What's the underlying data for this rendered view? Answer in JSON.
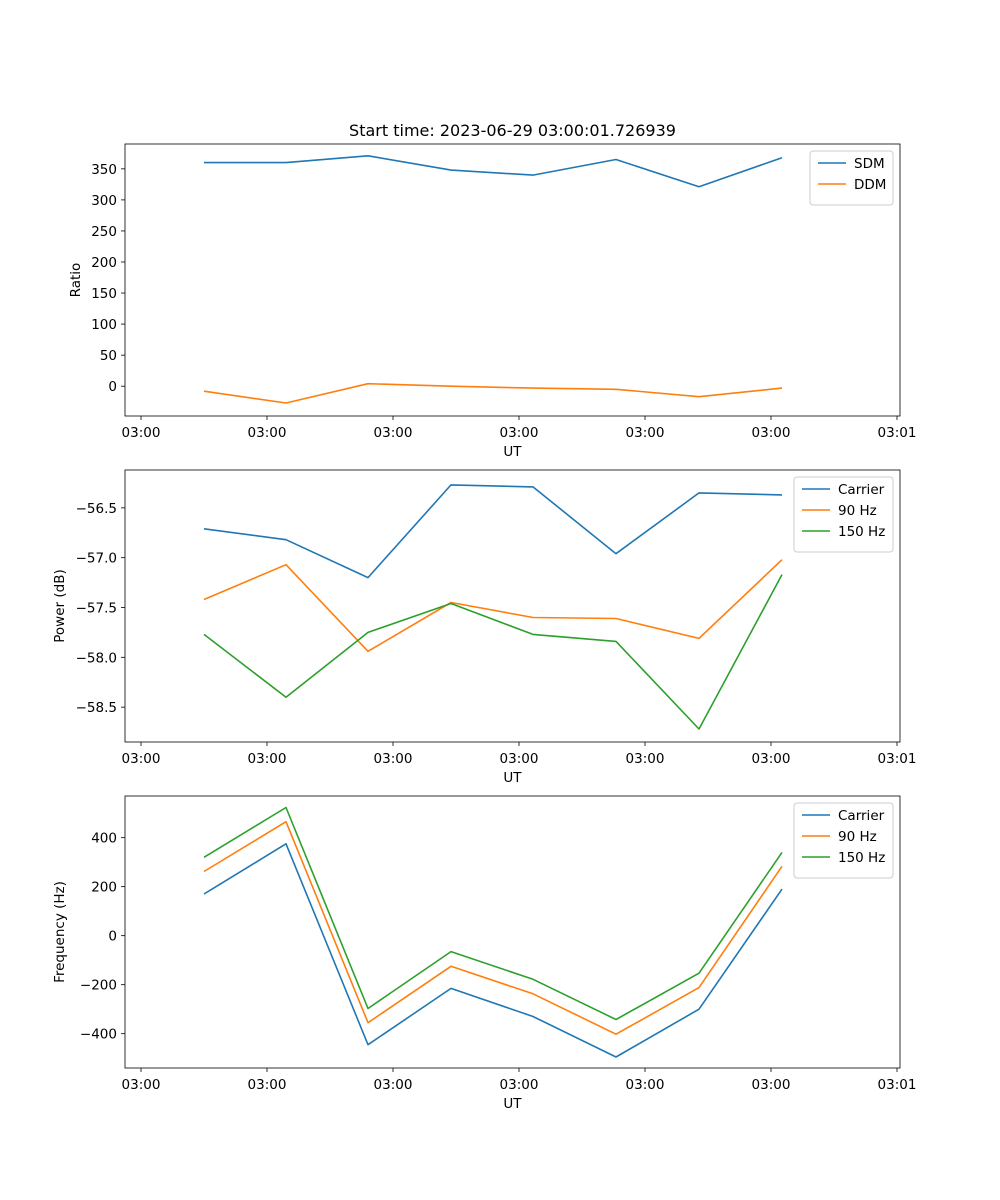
{
  "figure": {
    "title": "Start time: 2023-06-29 03:00:01.726939"
  },
  "colors": {
    "blue": "#1f77b4",
    "orange": "#ff7f0e",
    "green": "#2ca02c"
  },
  "chart_data": [
    {
      "type": "line",
      "title": "Start time: 2023-06-29 03:00:01.726939",
      "xlabel": "UT",
      "ylabel": "Ratio",
      "x_tick_labels": [
        "03:00",
        "03:00",
        "03:00",
        "03:00",
        "03:00",
        "03:00",
        "03:00",
        "03:01"
      ],
      "y_ticks": [
        0,
        50,
        100,
        150,
        200,
        250,
        300,
        350
      ],
      "ylim": [
        -48,
        390
      ],
      "legend": "top-right",
      "series": [
        {
          "name": "SDM",
          "color": "#1f77b4",
          "values": [
            360,
            360,
            371,
            348,
            340,
            365,
            321,
            368
          ]
        },
        {
          "name": "DDM",
          "color": "#ff7f0e",
          "values": [
            -8,
            -27,
            4,
            0,
            -3,
            -5,
            -17,
            -3
          ]
        }
      ]
    },
    {
      "type": "line",
      "title": "",
      "xlabel": "UT",
      "ylabel": "Power (dB)",
      "x_tick_labels": [
        "03:00",
        "03:00",
        "03:00",
        "03:00",
        "03:00",
        "03:00",
        "03:00",
        "03:01"
      ],
      "y_ticks": [
        -58.5,
        -58.0,
        -57.5,
        -57.0,
        -56.5
      ],
      "y_tick_labels": [
        "−58.5",
        "−58.0",
        "−57.5",
        "−57.0",
        "−56.5"
      ],
      "ylim": [
        -58.85,
        -56.12
      ],
      "legend": "top-right",
      "series": [
        {
          "name": "Carrier",
          "color": "#1f77b4",
          "values": [
            -56.71,
            -56.82,
            -57.2,
            -56.27,
            -56.29,
            -56.96,
            -56.35,
            -56.37
          ]
        },
        {
          "name": "90 Hz",
          "color": "#ff7f0e",
          "values": [
            -57.42,
            -57.07,
            -57.94,
            -57.45,
            -57.6,
            -57.61,
            -57.81,
            -57.02
          ]
        },
        {
          "name": "150 Hz",
          "color": "#2ca02c",
          "values": [
            -57.77,
            -58.4,
            -57.75,
            -57.46,
            -57.77,
            -57.84,
            -58.72,
            -57.17
          ]
        }
      ]
    },
    {
      "type": "line",
      "title": "",
      "xlabel": "UT",
      "ylabel": "Frequency (Hz)",
      "x_tick_labels": [
        "03:00",
        "03:00",
        "03:00",
        "03:00",
        "03:00",
        "03:00",
        "03:00",
        "03:01"
      ],
      "y_ticks": [
        -400,
        -200,
        0,
        200,
        400
      ],
      "y_tick_labels": [
        "−400",
        "−200",
        "0",
        "200",
        "400"
      ],
      "ylim": [
        -540,
        570
      ],
      "legend": "top-right",
      "series": [
        {
          "name": "Carrier",
          "color": "#1f77b4",
          "values": [
            170,
            375,
            -445,
            -215,
            -330,
            -495,
            -300,
            190
          ]
        },
        {
          "name": "90 Hz",
          "color": "#ff7f0e",
          "values": [
            262,
            465,
            -355,
            -125,
            -237,
            -402,
            -212,
            283
          ]
        },
        {
          "name": "150 Hz",
          "color": "#2ca02c",
          "values": [
            320,
            523,
            -297,
            -65,
            -178,
            -342,
            -153,
            340
          ]
        }
      ]
    }
  ]
}
